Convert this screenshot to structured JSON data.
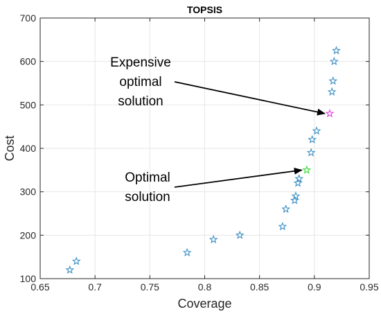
{
  "chart_data": {
    "type": "scatter",
    "title": "TOPSIS",
    "xlabel": "Coverage",
    "ylabel": "Cost",
    "xlim": [
      0.65,
      0.95
    ],
    "ylim": [
      100,
      700
    ],
    "xticks": [
      0.65,
      0.7,
      0.75,
      0.8,
      0.85,
      0.9,
      0.95
    ],
    "xtick_labels": [
      "0.65",
      "0.7",
      "0.75",
      "0.8",
      "0.85",
      "0.9",
      "0.95"
    ],
    "yticks": [
      100,
      200,
      300,
      400,
      500,
      600,
      700
    ],
    "ytick_labels": [
      "100",
      "200",
      "300",
      "400",
      "500",
      "600",
      "700"
    ],
    "grid": true,
    "marker": "star",
    "series": [
      {
        "color": "#3a8fc4",
        "x": [
          0.677,
          0.683,
          0.784,
          0.808,
          0.832,
          0.871,
          0.874,
          0.882,
          0.883,
          0.885,
          0.886,
          0.897,
          0.898,
          0.902,
          0.916,
          0.917,
          0.918,
          0.92
        ],
        "y": [
          120,
          140,
          160,
          190,
          200,
          220,
          260,
          280,
          290,
          320,
          330,
          390,
          420,
          440,
          530,
          555,
          600,
          625
        ]
      },
      {
        "color": "#33dd33",
        "x": [
          0.893
        ],
        "y": [
          350
        ]
      },
      {
        "color": "#e040e0",
        "x": [
          0.914
        ],
        "y": [
          480
        ]
      }
    ],
    "annotations": [
      {
        "lines": [
          "Expensive",
          "optimal",
          "solution"
        ],
        "points_to": [
          0.914,
          480
        ]
      },
      {
        "lines": [
          "Optimal",
          "solution"
        ],
        "points_to": [
          0.893,
          350
        ]
      }
    ]
  }
}
